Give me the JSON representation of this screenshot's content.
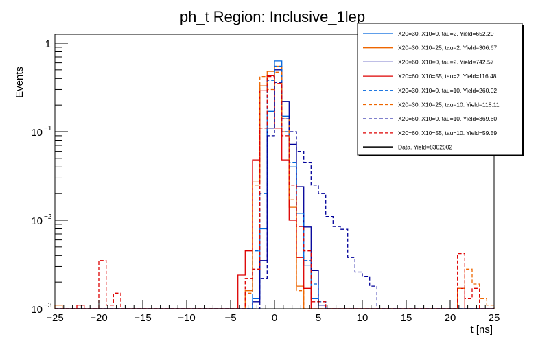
{
  "chart_data": {
    "type": "histogram",
    "title": "ph_t Region: Inclusive_1lep",
    "xlabel": "t [ns]",
    "ylabel": "Events",
    "xlim": [
      -25,
      25
    ],
    "ylim": [
      0.001,
      1.2
    ],
    "yscale": "log",
    "grid": false,
    "legend_position": "top-right",
    "bins": {
      "n": 60,
      "low": -25,
      "high": 25
    },
    "x_ticks": [
      -25,
      -20,
      -15,
      -10,
      -5,
      0,
      5,
      10,
      15,
      20,
      25
    ],
    "x_tick_labels": [
      "−25",
      "−20",
      "−15",
      "−10",
      "−5",
      "0",
      "5",
      "10",
      "15",
      "20",
      "25"
    ],
    "y_ticks": [
      {
        "value": 1,
        "base": "1",
        "exp": ""
      },
      {
        "value": 0.1,
        "base": "10",
        "exp": "−1"
      },
      {
        "value": 0.01,
        "base": "10",
        "exp": "−2"
      },
      {
        "value": 0.001,
        "base": "10",
        "exp": "−3"
      }
    ],
    "series": [
      {
        "name": "X20=30, X10=0, tau=2. Yield=652.20",
        "color": "#0066dd",
        "style": "solid",
        "sparse_values": {
          "27": 0.0013,
          "28": 0.008,
          "29": 0.17,
          "30": 0.63,
          "31": 0.15,
          "32": 0.04,
          "33": 0.012,
          "34": 0.0031,
          "35": 0.0013
        }
      },
      {
        "name": "X20=30, X10=25, tau=2. Yield=306.67",
        "color": "#ee6600",
        "style": "solid",
        "sparse_values": {
          "0": 0.0011,
          "26": 0.0016,
          "27": 0.027,
          "28": 0.33,
          "29": 0.48,
          "30": 0.55,
          "31": 0.1,
          "32": 0.014,
          "33": 0.0018
        }
      },
      {
        "name": "X20=60, X10=0, tau=2. Yield=742.57",
        "color": "#000099",
        "style": "solid",
        "sparse_values": {
          "27": 0.0012,
          "28": 0.0035,
          "29": 0.11,
          "30": 0.5,
          "31": 0.22,
          "32": 0.072,
          "33": 0.024,
          "34": 0.0084,
          "35": 0.0027,
          "36": 0.0011
        }
      },
      {
        "name": "X20=60, X10=55, tau=2. Yield=116.48",
        "color": "#dd0000",
        "style": "solid",
        "sparse_values": {
          "3": 0.0011,
          "25": 0.0024,
          "26": 0.0045,
          "27": 0.048,
          "28": 0.29,
          "29": 0.43,
          "30": 0.11,
          "31": 0.048,
          "32": 0.01,
          "33": 0.0038,
          "34": 0.0017,
          "55": 0.0017
        }
      },
      {
        "name": "X20=30, X10=0, tau=10. Yield=260.02",
        "color": "#0066dd",
        "style": "dashed",
        "sparse_values": {
          "27": 0.0045,
          "28": 0.02,
          "29": 0.38,
          "30": 0.55,
          "31": 0.1,
          "32": 0.045,
          "33": 0.012,
          "34": 0.0035,
          "35": 0.0019,
          "36": 0.0012
        }
      },
      {
        "name": "X20=30, X10=25, tau=10. Yield=118.11",
        "color": "#ee6600",
        "style": "dashed",
        "sparse_values": {
          "26": 0.0015,
          "27": 0.025,
          "28": 0.42,
          "29": 0.3,
          "30": 0.47,
          "31": 0.14,
          "32": 0.017,
          "33": 0.0016,
          "55": 0.0017,
          "56": 0.0028,
          "57": 0.0019,
          "58": 0.0013,
          "59": 0.0011
        }
      },
      {
        "name": "X20=60, X10=0, tau=10. Yield=369.60",
        "color": "#000099",
        "style": "dashed",
        "sparse_values": {
          "28": 0.0022,
          "29": 0.09,
          "30": 0.36,
          "31": 0.14,
          "32": 0.1,
          "33": 0.06,
          "34": 0.045,
          "35": 0.025,
          "36": 0.02,
          "37": 0.011,
          "38": 0.0085,
          "39": 0.0079,
          "40": 0.0038,
          "41": 0.0026,
          "42": 0.0023,
          "43": 0.0018
        }
      },
      {
        "name": "X20=60, X10=55, tau=10. Yield=59.59",
        "color": "#dd0000",
        "style": "dashed",
        "sparse_values": {
          "6": 0.0035,
          "7": 0.0011,
          "8": 0.0015,
          "26": 0.0022,
          "27": 0.0028,
          "28": 0.11,
          "29": 0.42,
          "30": 0.35,
          "31": 0.09,
          "32": 0.025,
          "33": 0.0085,
          "34": 0.0045,
          "35": 0.0012,
          "36": 0.0012,
          "55": 0.0042,
          "56": 0.0013,
          "57": 0.0017
        }
      },
      {
        "name": "Data. Yield=8302002",
        "color": "#000000",
        "style": "thick",
        "sparse_values": {}
      }
    ]
  }
}
